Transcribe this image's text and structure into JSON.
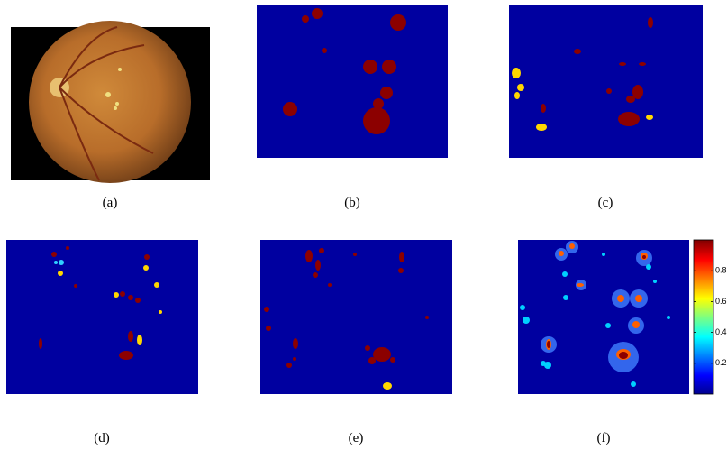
{
  "figure": {
    "panels": [
      {
        "label": "(a)"
      },
      {
        "label": "(b)"
      },
      {
        "label": "(c)"
      },
      {
        "label": "(d)"
      },
      {
        "label": "(e)"
      },
      {
        "label": "(f)"
      }
    ],
    "colorbar": {
      "lim": [
        0,
        1
      ],
      "ticks": [
        0.2,
        0.4,
        0.6,
        0.8
      ]
    }
  }
}
